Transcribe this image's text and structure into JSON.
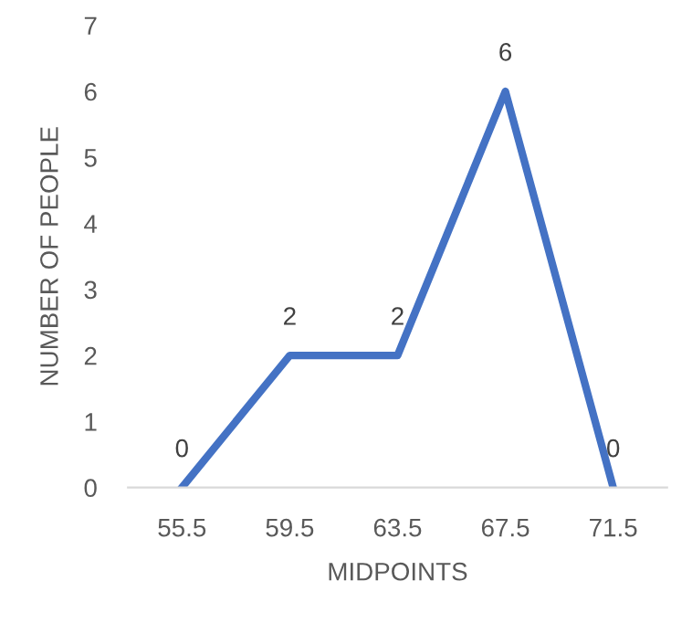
{
  "chart_data": {
    "type": "line",
    "xlabel": "MIDPOINTS",
    "ylabel": "NUMBER OF PEOPLE",
    "categories": [
      "55.5",
      "59.5",
      "63.5",
      "67.5",
      "71.5"
    ],
    "series": [
      {
        "color": "#4472c4",
        "values": [
          0,
          2,
          2,
          6,
          0
        ]
      }
    ],
    "ylim": [
      0,
      7
    ],
    "yticks": [
      0,
      1,
      2,
      3,
      4,
      5,
      6,
      7
    ],
    "data_labels": true,
    "grid": false,
    "legend": false,
    "marker": "none",
    "line_style": "solid"
  }
}
